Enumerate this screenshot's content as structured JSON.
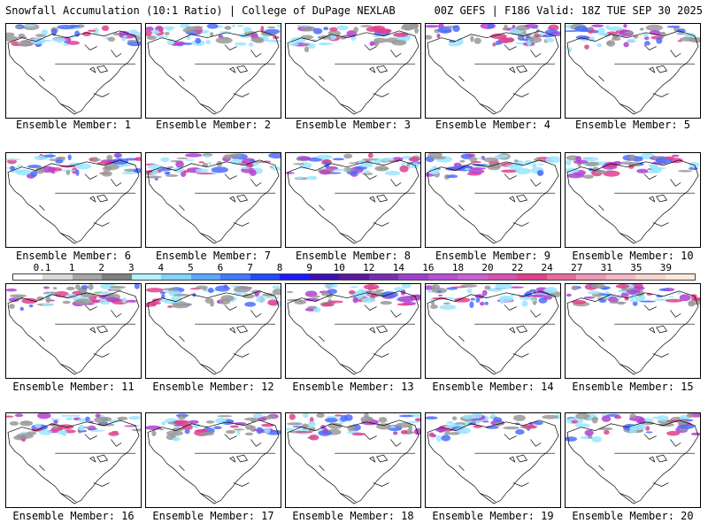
{
  "header": {
    "left": "Snowfall Accumulation (10:1 Ratio) | College of DuPage NEXLAB",
    "right": "00Z GEFS | F186 Valid: 18Z TUE SEP 30 2025"
  },
  "members": [
    "Ensemble Member: 1",
    "Ensemble Member: 2",
    "Ensemble Member: 3",
    "Ensemble Member: 4",
    "Ensemble Member: 5",
    "Ensemble Member: 6",
    "Ensemble Member: 7",
    "Ensemble Member: 8",
    "Ensemble Member: 9",
    "Ensemble Member: 10",
    "Ensemble Member: 11",
    "Ensemble Member: 12",
    "Ensemble Member: 13",
    "Ensemble Member: 14",
    "Ensemble Member: 15",
    "Ensemble Member: 16",
    "Ensemble Member: 17",
    "Ensemble Member: 18",
    "Ensemble Member: 19",
    "Ensemble Member: 20"
  ],
  "legend": {
    "ticks": [
      "0.1",
      "1",
      "2",
      "3",
      "4",
      "5",
      "6",
      "7",
      "8",
      "9",
      "10",
      "12",
      "14",
      "16",
      "18",
      "20",
      "22",
      "24",
      "27",
      "31",
      "35",
      "39"
    ],
    "colors": [
      "#ffffff",
      "#d9d9d9",
      "#a6a6a6",
      "#7f7f7f",
      "#b3f0ff",
      "#80d4ff",
      "#5aa8ff",
      "#3d7bff",
      "#1f4dff",
      "#1a1aff",
      "#3b0fb3",
      "#5a1a99",
      "#7a2bb3",
      "#9c3fcc",
      "#b84fd6",
      "#cc5fd6",
      "#d94fb3",
      "#e0408c",
      "#e66a9c",
      "#ee99b3",
      "#f2b8c6",
      "#f7d4cc",
      "#fbe9dc"
    ]
  },
  "colors": {
    "gray": "#999999",
    "cyan": "#99e6ff",
    "blue": "#4a6cff",
    "purple": "#b040d0",
    "magenta": "#e0408c"
  }
}
